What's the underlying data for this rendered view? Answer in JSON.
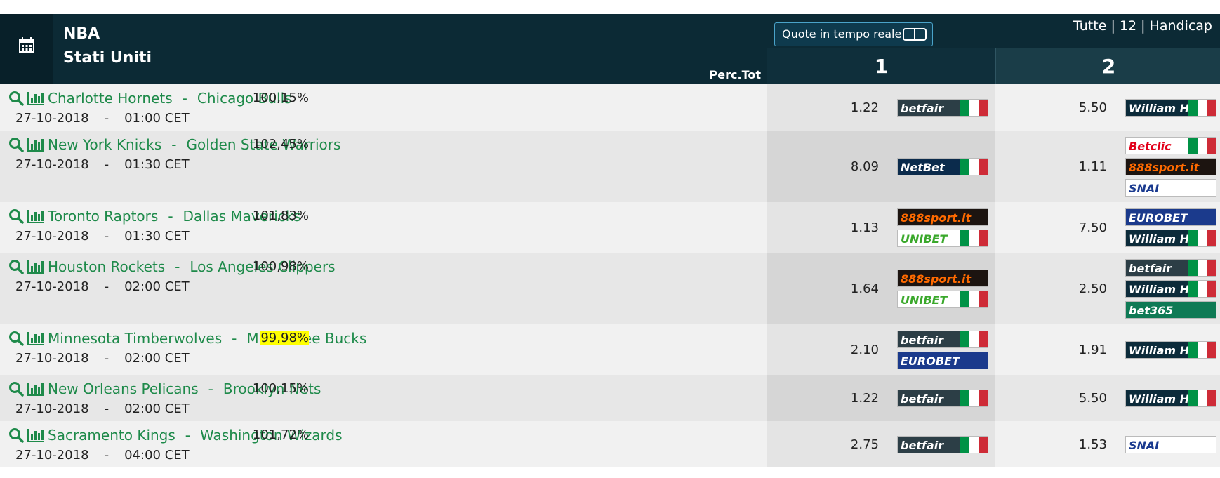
{
  "header": {
    "league": "NBA",
    "country": "Stati Uniti",
    "perc_label": "Perc.Tot",
    "live_button": "Quote in tempo reale",
    "filters": "Tutte | 12 | Handicap",
    "columns": [
      "1",
      "2"
    ]
  },
  "separator": "-",
  "matches": [
    {
      "home": "Charlotte Hornets",
      "away": "Chicago Bulls",
      "date": "27-10-2018",
      "time": "01:00 CET",
      "perc": "100,15%",
      "highlight": false,
      "odds1": "1.22",
      "books1": [
        {
          "name": "betfair",
          "bg": "#2c3e46",
          "fg": "#ffffff",
          "flag": true
        }
      ],
      "odds2": "5.50",
      "books2": [
        {
          "name": "William HILL",
          "bg": "#0c2b3a",
          "fg": "#ffffff",
          "flag": true
        }
      ]
    },
    {
      "home": "New York Knicks",
      "away": "Golden State Warriors",
      "date": "27-10-2018",
      "time": "01:30 CET",
      "perc": "102,45%",
      "highlight": false,
      "odds1": "8.09",
      "books1": [
        {
          "name": "NetBet",
          "bg": "#0b2b4c",
          "fg": "#ffffff",
          "flag": true
        }
      ],
      "odds2": "1.11",
      "books2": [
        {
          "name": "Betclic",
          "bg": "#ffffff",
          "fg": "#e2001a",
          "flag": true
        },
        {
          "name": "888sport.it",
          "bg": "#1c1410",
          "fg": "#ff6a00",
          "flag": false
        },
        {
          "name": "SNAI",
          "bg": "#ffffff",
          "fg": "#1a3a8f",
          "flag": false
        }
      ]
    },
    {
      "home": "Toronto Raptors",
      "away": "Dallas Mavericks",
      "date": "27-10-2018",
      "time": "01:30 CET",
      "perc": "101,83%",
      "highlight": false,
      "odds1": "1.13",
      "books1": [
        {
          "name": "888sport.it",
          "bg": "#1c1410",
          "fg": "#ff6a00",
          "flag": false
        },
        {
          "name": "UNIBET",
          "bg": "#ffffff",
          "fg": "#3aa82b",
          "flag": true
        }
      ],
      "odds2": "7.50",
      "books2": [
        {
          "name": "EUROBET",
          "bg": "#1b3a8c",
          "fg": "#ffffff",
          "flag": false
        },
        {
          "name": "William HILL",
          "bg": "#0c2b3a",
          "fg": "#ffffff",
          "flag": true
        }
      ]
    },
    {
      "home": "Houston Rockets",
      "away": "Los Angeles Clippers",
      "date": "27-10-2018",
      "time": "02:00 CET",
      "perc": "100,98%",
      "highlight": false,
      "odds1": "1.64",
      "books1": [
        {
          "name": "888sport.it",
          "bg": "#1c1410",
          "fg": "#ff6a00",
          "flag": false
        },
        {
          "name": "UNIBET",
          "bg": "#ffffff",
          "fg": "#3aa82b",
          "flag": true
        }
      ],
      "odds2": "2.50",
      "books2": [
        {
          "name": "betfair",
          "bg": "#2c3e46",
          "fg": "#ffffff",
          "flag": true
        },
        {
          "name": "William HILL",
          "bg": "#0c2b3a",
          "fg": "#ffffff",
          "flag": true
        },
        {
          "name": "bet365",
          "bg": "#0f7a55",
          "fg": "#ffffff",
          "flag": false
        }
      ]
    },
    {
      "home": "Minnesota Timberwolves",
      "away": "Milwaukee Bucks",
      "date": "27-10-2018",
      "time": "02:00 CET",
      "perc": "99,98%",
      "highlight": true,
      "odds1": "2.10",
      "books1": [
        {
          "name": "betfair",
          "bg": "#2c3e46",
          "fg": "#ffffff",
          "flag": true
        },
        {
          "name": "EUROBET",
          "bg": "#1b3a8c",
          "fg": "#ffffff",
          "flag": false
        }
      ],
      "odds2": "1.91",
      "books2": [
        {
          "name": "William HILL",
          "bg": "#0c2b3a",
          "fg": "#ffffff",
          "flag": true
        }
      ]
    },
    {
      "home": "New Orleans Pelicans",
      "away": "Brooklyn Nets",
      "date": "27-10-2018",
      "time": "02:00 CET",
      "perc": "100,15%",
      "highlight": false,
      "odds1": "1.22",
      "books1": [
        {
          "name": "betfair",
          "bg": "#2c3e46",
          "fg": "#ffffff",
          "flag": true
        }
      ],
      "odds2": "5.50",
      "books2": [
        {
          "name": "William HILL",
          "bg": "#0c2b3a",
          "fg": "#ffffff",
          "flag": true
        }
      ]
    },
    {
      "home": "Sacramento Kings",
      "away": "Washington Wizards",
      "date": "27-10-2018",
      "time": "04:00 CET",
      "perc": "101,72%",
      "highlight": false,
      "odds1": "2.75",
      "books1": [
        {
          "name": "betfair",
          "bg": "#2c3e46",
          "fg": "#ffffff",
          "flag": true
        }
      ],
      "odds2": "1.53",
      "books2": [
        {
          "name": "SNAI",
          "bg": "#ffffff",
          "fg": "#1a3a8f",
          "flag": false
        }
      ]
    }
  ]
}
